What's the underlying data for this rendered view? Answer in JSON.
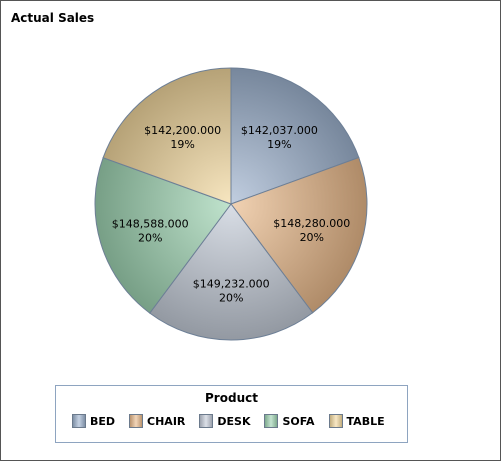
{
  "chart_data": {
    "type": "pie",
    "title": "Actual Sales",
    "legend_title": "Product",
    "legend_position": "bottom",
    "slices": [
      {
        "category": "BED",
        "value": 142037,
        "value_label": "$142,037.000",
        "percent_label": "19%",
        "color": "#9fb4d0"
      },
      {
        "category": "CHAIR",
        "value": 148280,
        "value_label": "$148,280.000",
        "percent_label": "20%",
        "color": "#e9b98a"
      },
      {
        "category": "DESK",
        "value": 149232,
        "value_label": "$149,232.000",
        "percent_label": "20%",
        "color": "#c4ccd8"
      },
      {
        "category": "SOFA",
        "value": 148588,
        "value_label": "$148,588.000",
        "percent_label": "20%",
        "color": "#9ed4b2"
      },
      {
        "category": "TABLE",
        "value": 142200,
        "value_label": "$142,200.000",
        "percent_label": "19%",
        "color": "#f3d89e"
      }
    ]
  }
}
